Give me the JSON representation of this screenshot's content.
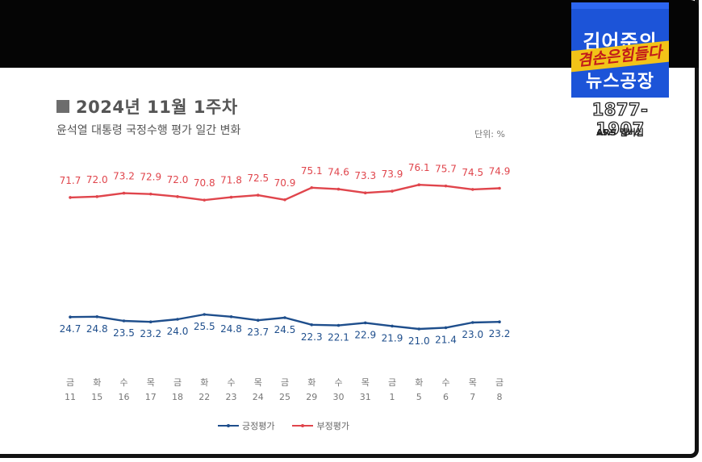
{
  "header": {
    "title": "2024년 11월 1주차",
    "subtitle": "윤석열 대통령 국정수행 평가 일간 변화",
    "unit": "단위: %"
  },
  "logo": {
    "line1": "김어준의",
    "line2": "겸손은힘들다",
    "line3": "뉴스공장",
    "phone": "1877-1907",
    "caption": "ARS 멤버십"
  },
  "chart_data": {
    "type": "line",
    "x_days": [
      "금",
      "화",
      "수",
      "목",
      "금",
      "화",
      "수",
      "목",
      "금",
      "화",
      "수",
      "목",
      "금",
      "화",
      "수",
      "목",
      "금"
    ],
    "x_dates": [
      "11",
      "15",
      "16",
      "17",
      "18",
      "22",
      "23",
      "24",
      "25",
      "29",
      "30",
      "31",
      "1",
      "5",
      "6",
      "7",
      "8"
    ],
    "series": [
      {
        "name": "긍정평가",
        "color": "#1e4e8c",
        "values": [
          24.7,
          24.8,
          23.5,
          23.2,
          24.0,
          25.5,
          24.8,
          23.7,
          24.5,
          22.3,
          22.1,
          22.9,
          21.9,
          21.0,
          21.4,
          23.0,
          23.2
        ]
      },
      {
        "name": "부정평가",
        "color": "#e0454c",
        "values": [
          71.7,
          72.0,
          73.2,
          72.9,
          72.0,
          70.8,
          71.8,
          72.5,
          70.9,
          75.1,
          74.6,
          73.3,
          73.9,
          76.1,
          75.7,
          74.5,
          74.9
        ]
      }
    ]
  }
}
